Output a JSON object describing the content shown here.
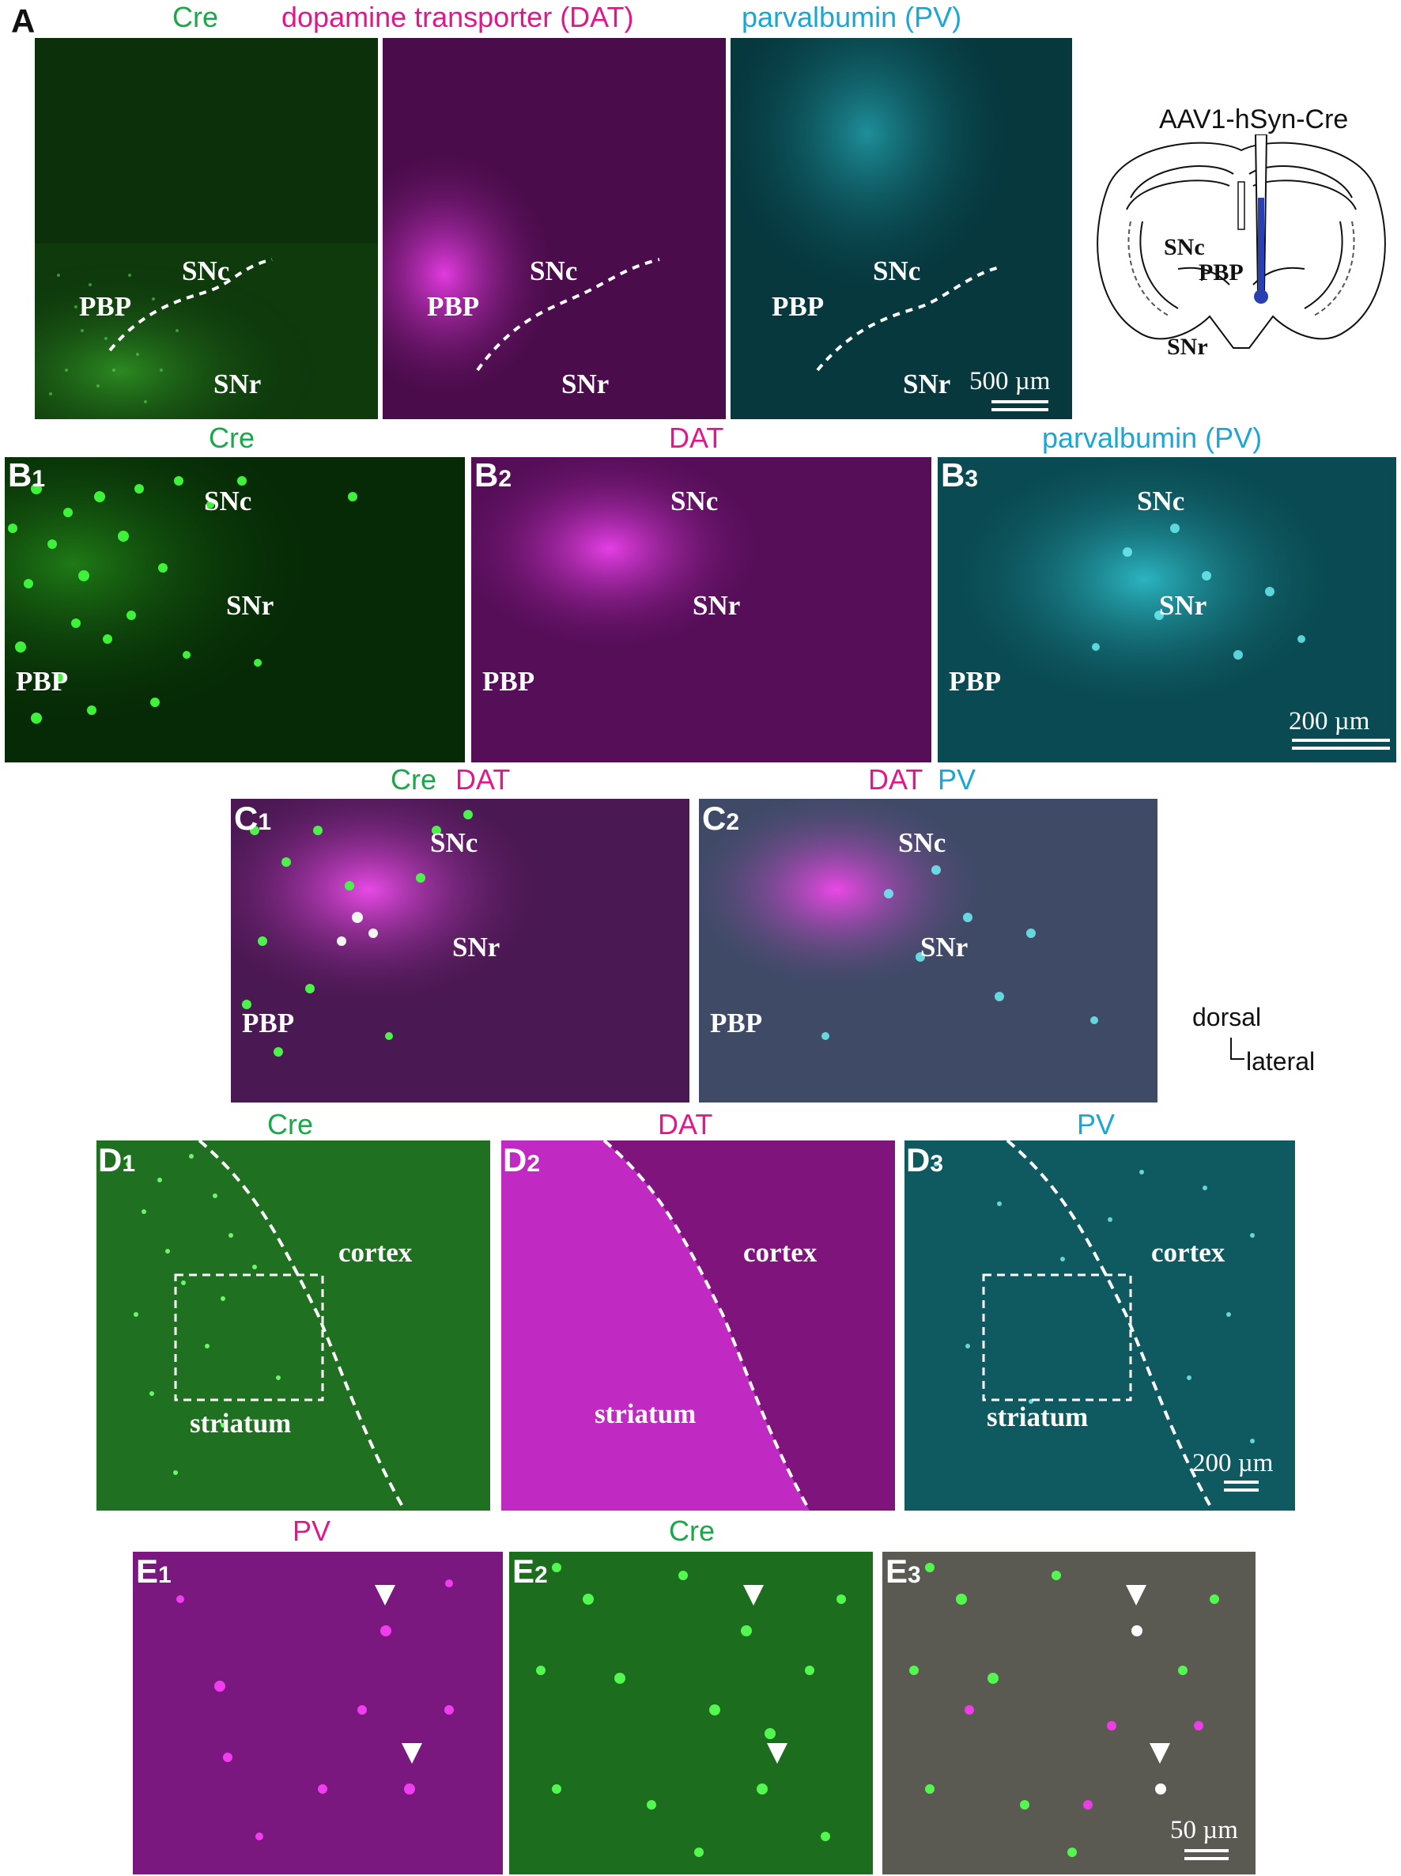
{
  "colors": {
    "cre": "#1aa84a",
    "dat": "#e0188c",
    "pv": "#1aa7d6",
    "black": "#111111",
    "white": "#ffffff"
  },
  "panelA": {
    "letter": "A",
    "titles": {
      "cre": "Cre",
      "dat": "dopamine transporter (DAT)",
      "pv": "parvalbumin (PV)"
    },
    "labels": {
      "snc": "SNc",
      "pbp": "PBP",
      "snr": "SNr"
    },
    "scale": "500 µm",
    "schematic": {
      "title": "AAV1-hSyn-Cre",
      "snc": "SNc",
      "pbp": "PBP",
      "snr": "SNr"
    }
  },
  "panelB": {
    "letters": [
      "B1",
      "B2",
      "B3"
    ],
    "titles": {
      "cre": "Cre",
      "dat": "DAT",
      "pv": "parvalbumin (PV)"
    },
    "labels": {
      "snc": "SNc",
      "snr": "SNr",
      "pbp": "PBP"
    },
    "scale": "200 µm"
  },
  "panelC": {
    "letters": [
      "C1",
      "C2"
    ],
    "titles": {
      "c1_a": "Cre",
      "c1_b": "DAT",
      "c2_a": "DAT",
      "c2_b": "PV"
    },
    "labels": {
      "snc": "SNc",
      "snr": "SNr",
      "pbp": "PBP"
    },
    "orientation": {
      "dorsal": "dorsal",
      "lateral": "lateral"
    }
  },
  "panelD": {
    "letters": [
      "D1",
      "D2",
      "D3"
    ],
    "titles": {
      "cre": "Cre",
      "dat": "DAT",
      "pv": "PV"
    },
    "labels": {
      "cortex": "cortex",
      "striatum": "striatum"
    },
    "scale": "200 µm"
  },
  "panelE": {
    "letters": [
      "E1",
      "E2",
      "E3"
    ],
    "titles": {
      "pv": "PV",
      "cre": "Cre"
    },
    "scale": "50 µm"
  }
}
